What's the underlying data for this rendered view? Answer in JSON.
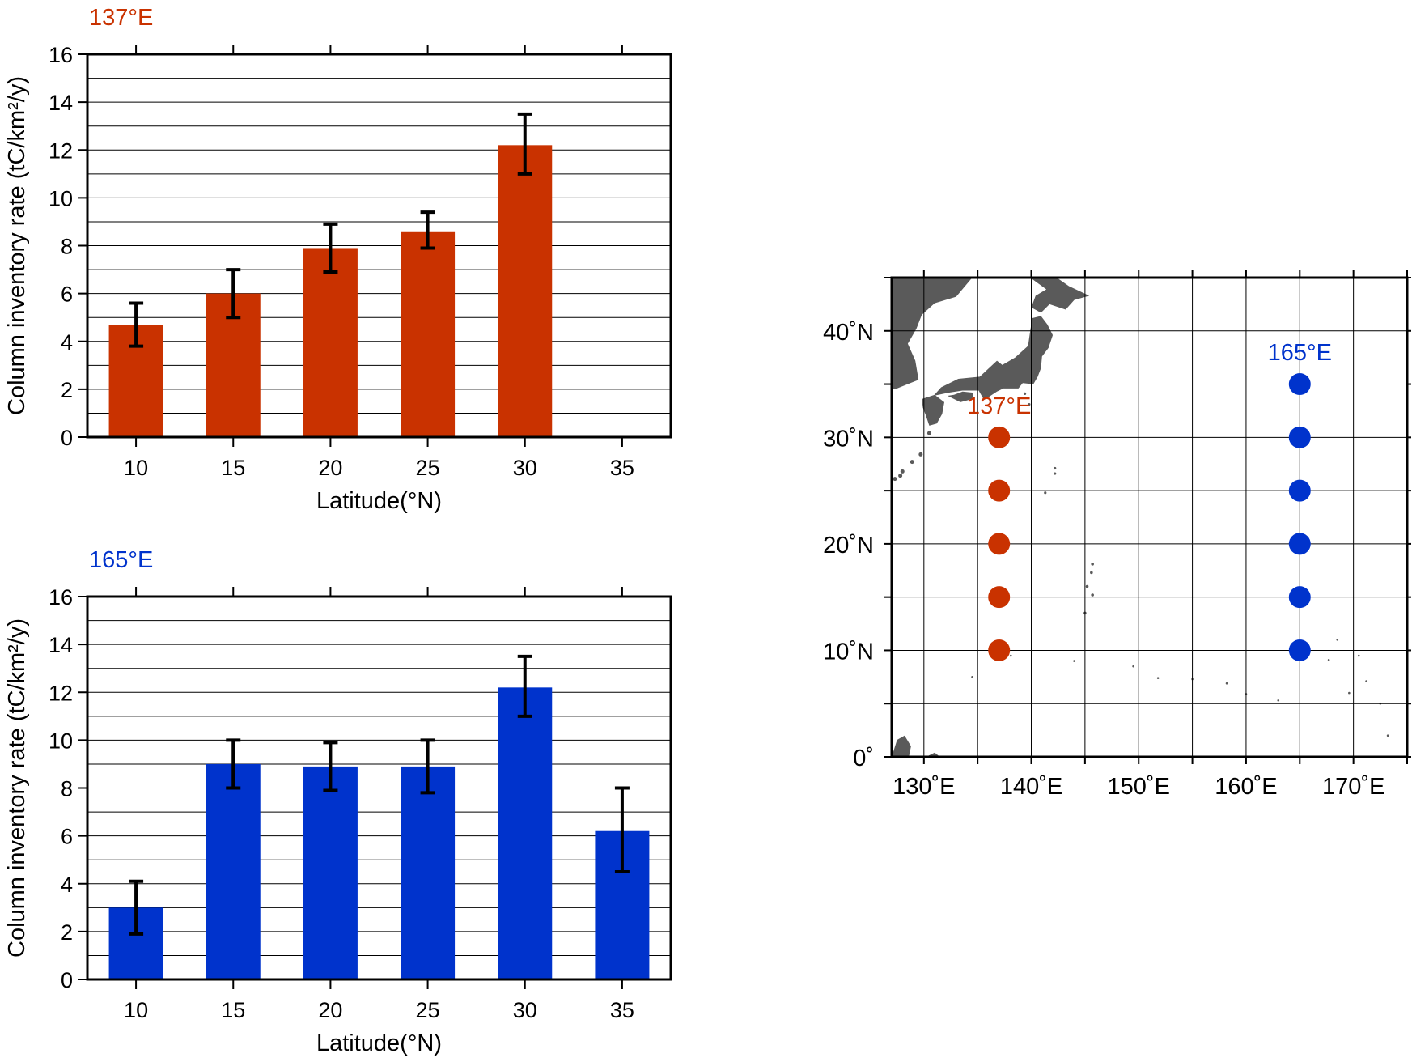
{
  "chart_data": [
    {
      "type": "bar",
      "title": "137°E",
      "xlabel": "Latitude(°N)",
      "ylabel": "Column inventory rate (tC/km²/y)",
      "ylim": [
        0,
        16
      ],
      "yticks": [
        "0",
        "2",
        "4",
        "6",
        "8",
        "10",
        "12",
        "14",
        "16"
      ],
      "categories": [
        "10",
        "15",
        "20",
        "25",
        "30",
        "35"
      ],
      "values": [
        4.7,
        6.0,
        7.9,
        8.6,
        12.2,
        null
      ],
      "err_low": [
        3.8,
        5.0,
        6.9,
        7.9,
        11.0,
        null
      ],
      "err_high": [
        5.6,
        7.0,
        8.9,
        9.4,
        13.5,
        null
      ],
      "color": "#c93200",
      "grid": true
    },
    {
      "type": "bar",
      "title": "165°E",
      "xlabel": "Latitude(°N)",
      "ylabel": "Column inventory rate (tC/km²/y)",
      "ylim": [
        0,
        16
      ],
      "yticks": [
        "0",
        "2",
        "4",
        "6",
        "8",
        "10",
        "12",
        "14",
        "16"
      ],
      "categories": [
        "10",
        "15",
        "20",
        "25",
        "30",
        "35"
      ],
      "values": [
        3.0,
        9.0,
        8.9,
        8.9,
        12.2,
        6.2
      ],
      "err_low": [
        1.9,
        8.0,
        7.9,
        7.8,
        11.0,
        4.5
      ],
      "err_high": [
        4.1,
        10.0,
        9.9,
        10.0,
        13.5,
        8.0
      ],
      "color": "#0033cc",
      "grid": true
    },
    {
      "type": "scatter",
      "subtype": "map",
      "xlim": [
        127,
        175
      ],
      "ylim": [
        0,
        45
      ],
      "xticks": [
        {
          "value": 130,
          "label": "130˚E"
        },
        {
          "value": 140,
          "label": "140˚E"
        },
        {
          "value": 150,
          "label": "150˚E"
        },
        {
          "value": 160,
          "label": "160˚E"
        },
        {
          "value": 170,
          "label": "170˚E"
        }
      ],
      "yticks": [
        {
          "value": 0,
          "label": "0˚"
        },
        {
          "value": 10,
          "label": "10˚N"
        },
        {
          "value": 20,
          "label": "20˚N"
        },
        {
          "value": 30,
          "label": "30˚N"
        },
        {
          "value": 40,
          "label": "40˚N"
        }
      ],
      "grid": true,
      "land_color": "#5a5a5a",
      "series": [
        {
          "name": "137°E",
          "color": "#c93200",
          "lon": 137,
          "lat": [
            10,
            15,
            20,
            25,
            30
          ],
          "label_lat": 33
        },
        {
          "name": "165°E",
          "color": "#0033cc",
          "lon": 165,
          "lat": [
            10,
            15,
            20,
            25,
            30,
            35
          ],
          "label_lat": 38
        }
      ]
    }
  ]
}
